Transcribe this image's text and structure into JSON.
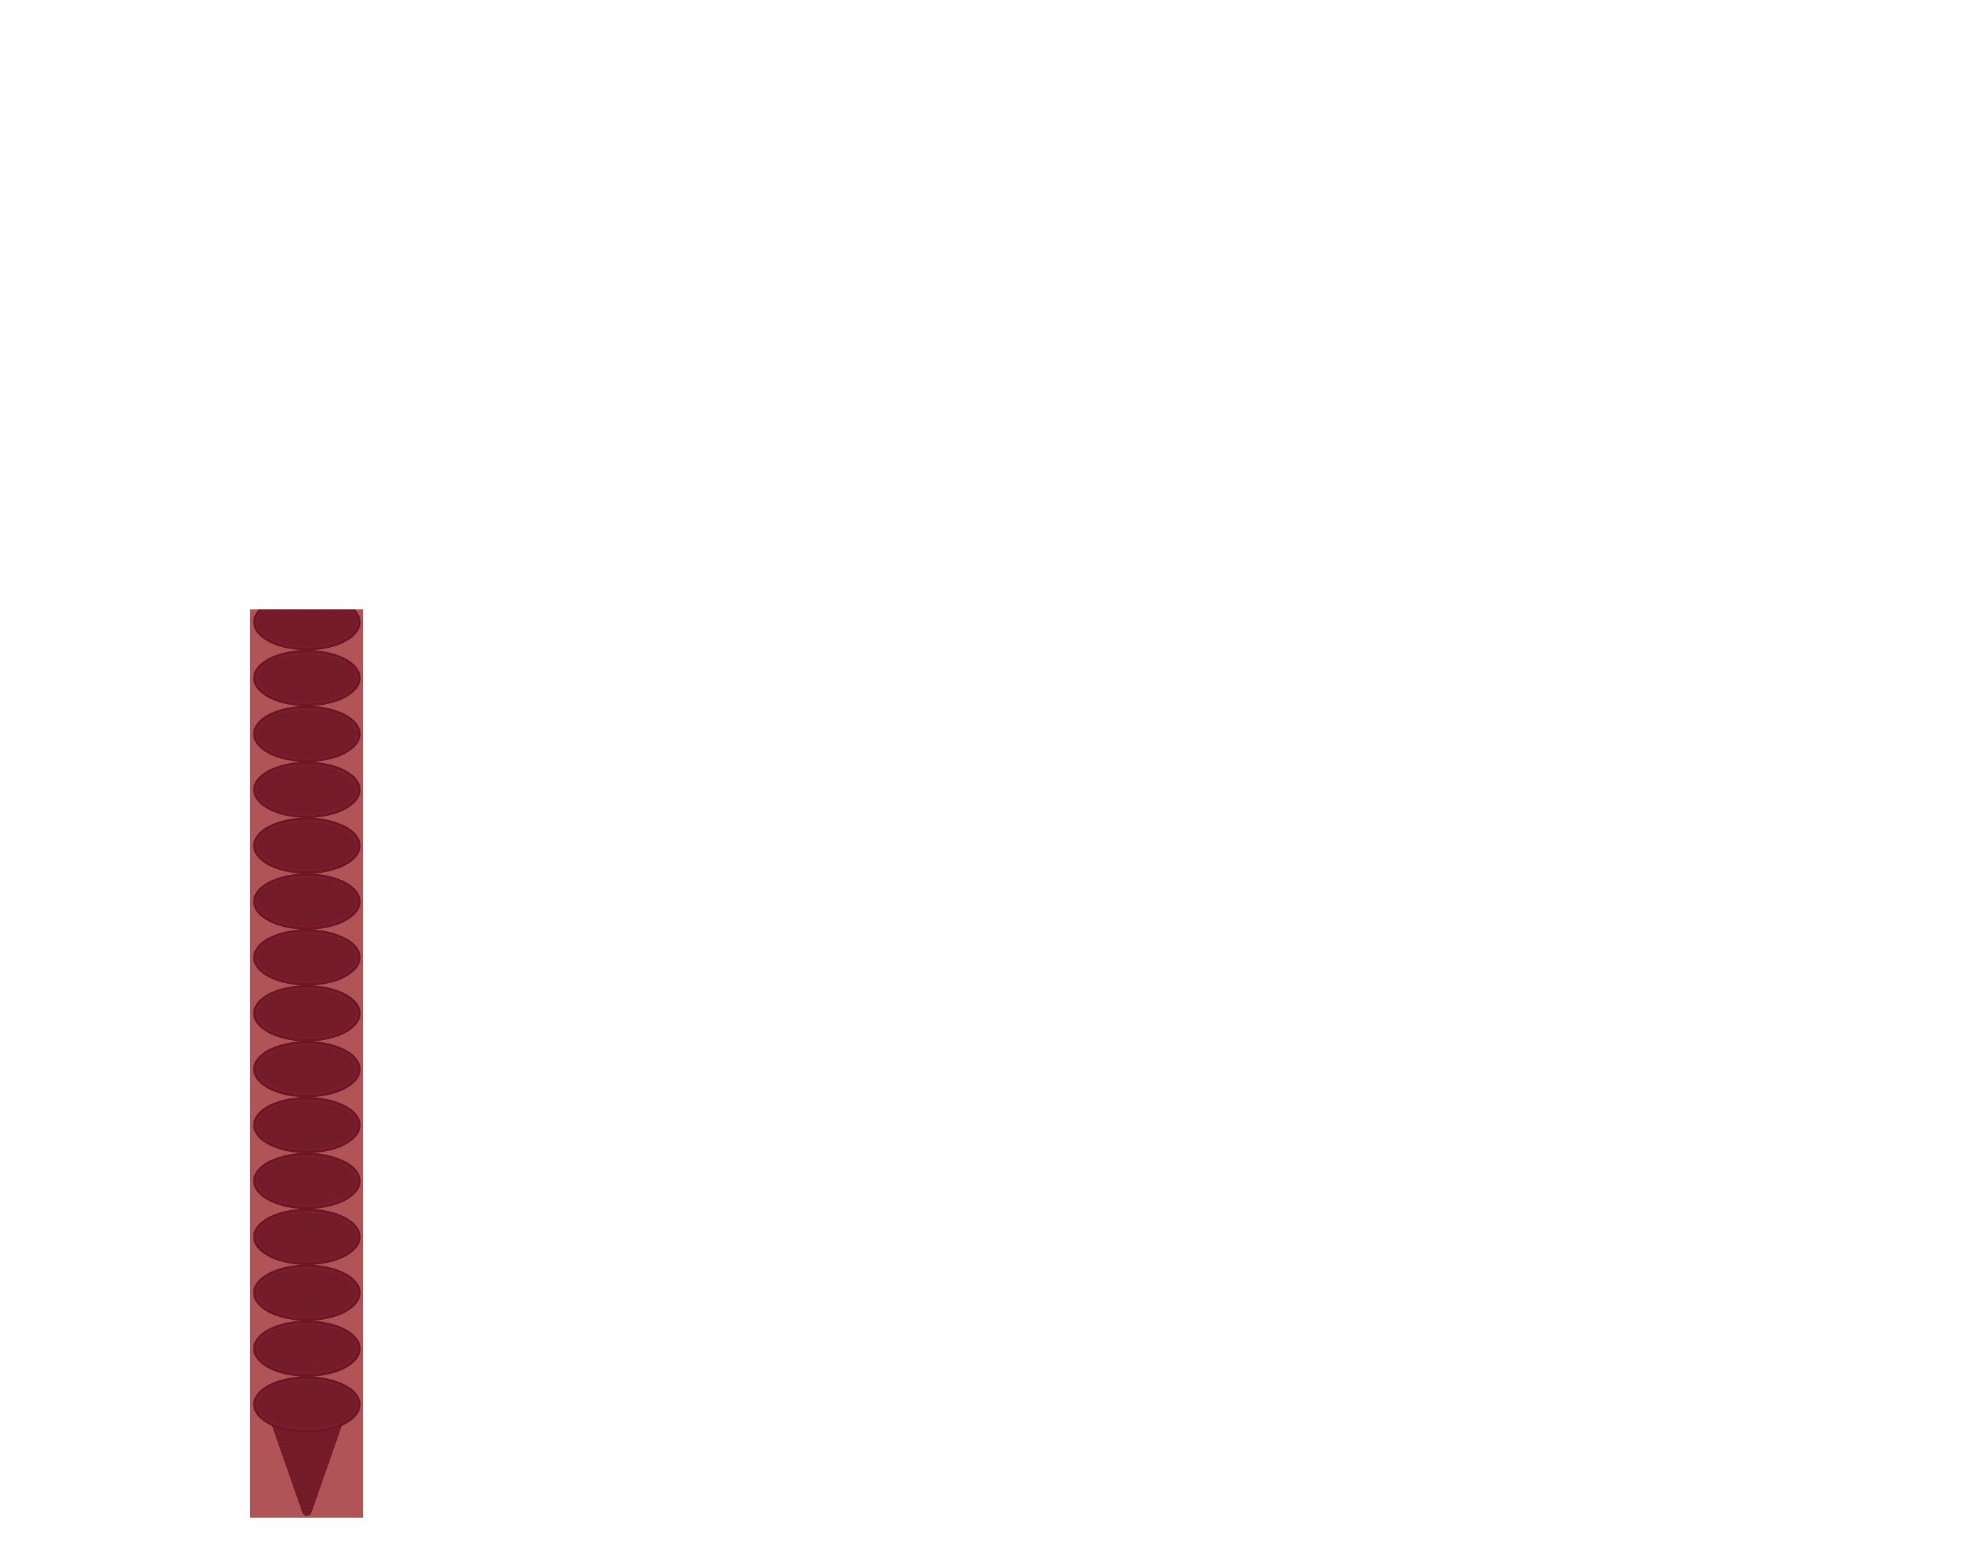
{
  "graphic": {
    "icon": "ice-cream-cone-icon",
    "scoop_count": 15,
    "colors": {
      "page_background": "#fefefe",
      "panel": "#b05457",
      "scoop": "#7a1c2b",
      "scoop_outline": "#6a1624",
      "cone": "#7a1c2b"
    }
  }
}
